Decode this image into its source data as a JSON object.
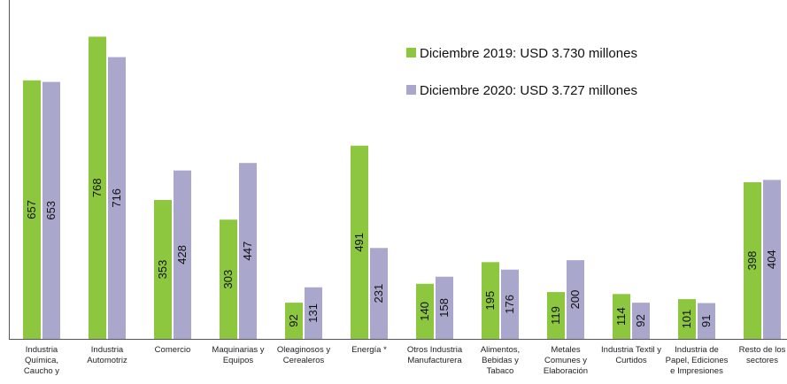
{
  "chart_data": {
    "type": "bar",
    "categories": [
      "Industria\nQuímica,\nCaucho y",
      "Industria\nAutomotriz",
      "Comercio",
      "Maquinarias y\nEquipos",
      "Oleaginosos y\nCerealeros",
      "Energía *",
      "Otros Industria\nManufacturera",
      "Alimentos,\nBebidas y\nTabaco",
      "Metales\nComunes y\nElaboración",
      "Industria Textil y\nCurtidos",
      "Industria de\nPapel, Ediciones\ne Impresiones",
      "Resto de los\nsectores"
    ],
    "series": [
      {
        "name": "Diciembre 2019: USD 3.730 millones",
        "color": "#8dc63f",
        "values": [
          657,
          768,
          353,
          303,
          92,
          491,
          140,
          195,
          119,
          114,
          101,
          398
        ]
      },
      {
        "name": "Diciembre 2020: USD 3.727 millones",
        "color": "#aaa7cd",
        "values": [
          653,
          716,
          428,
          447,
          131,
          231,
          158,
          176,
          200,
          92,
          91,
          404
        ]
      }
    ],
    "ylim": [
      0,
      850
    ]
  }
}
